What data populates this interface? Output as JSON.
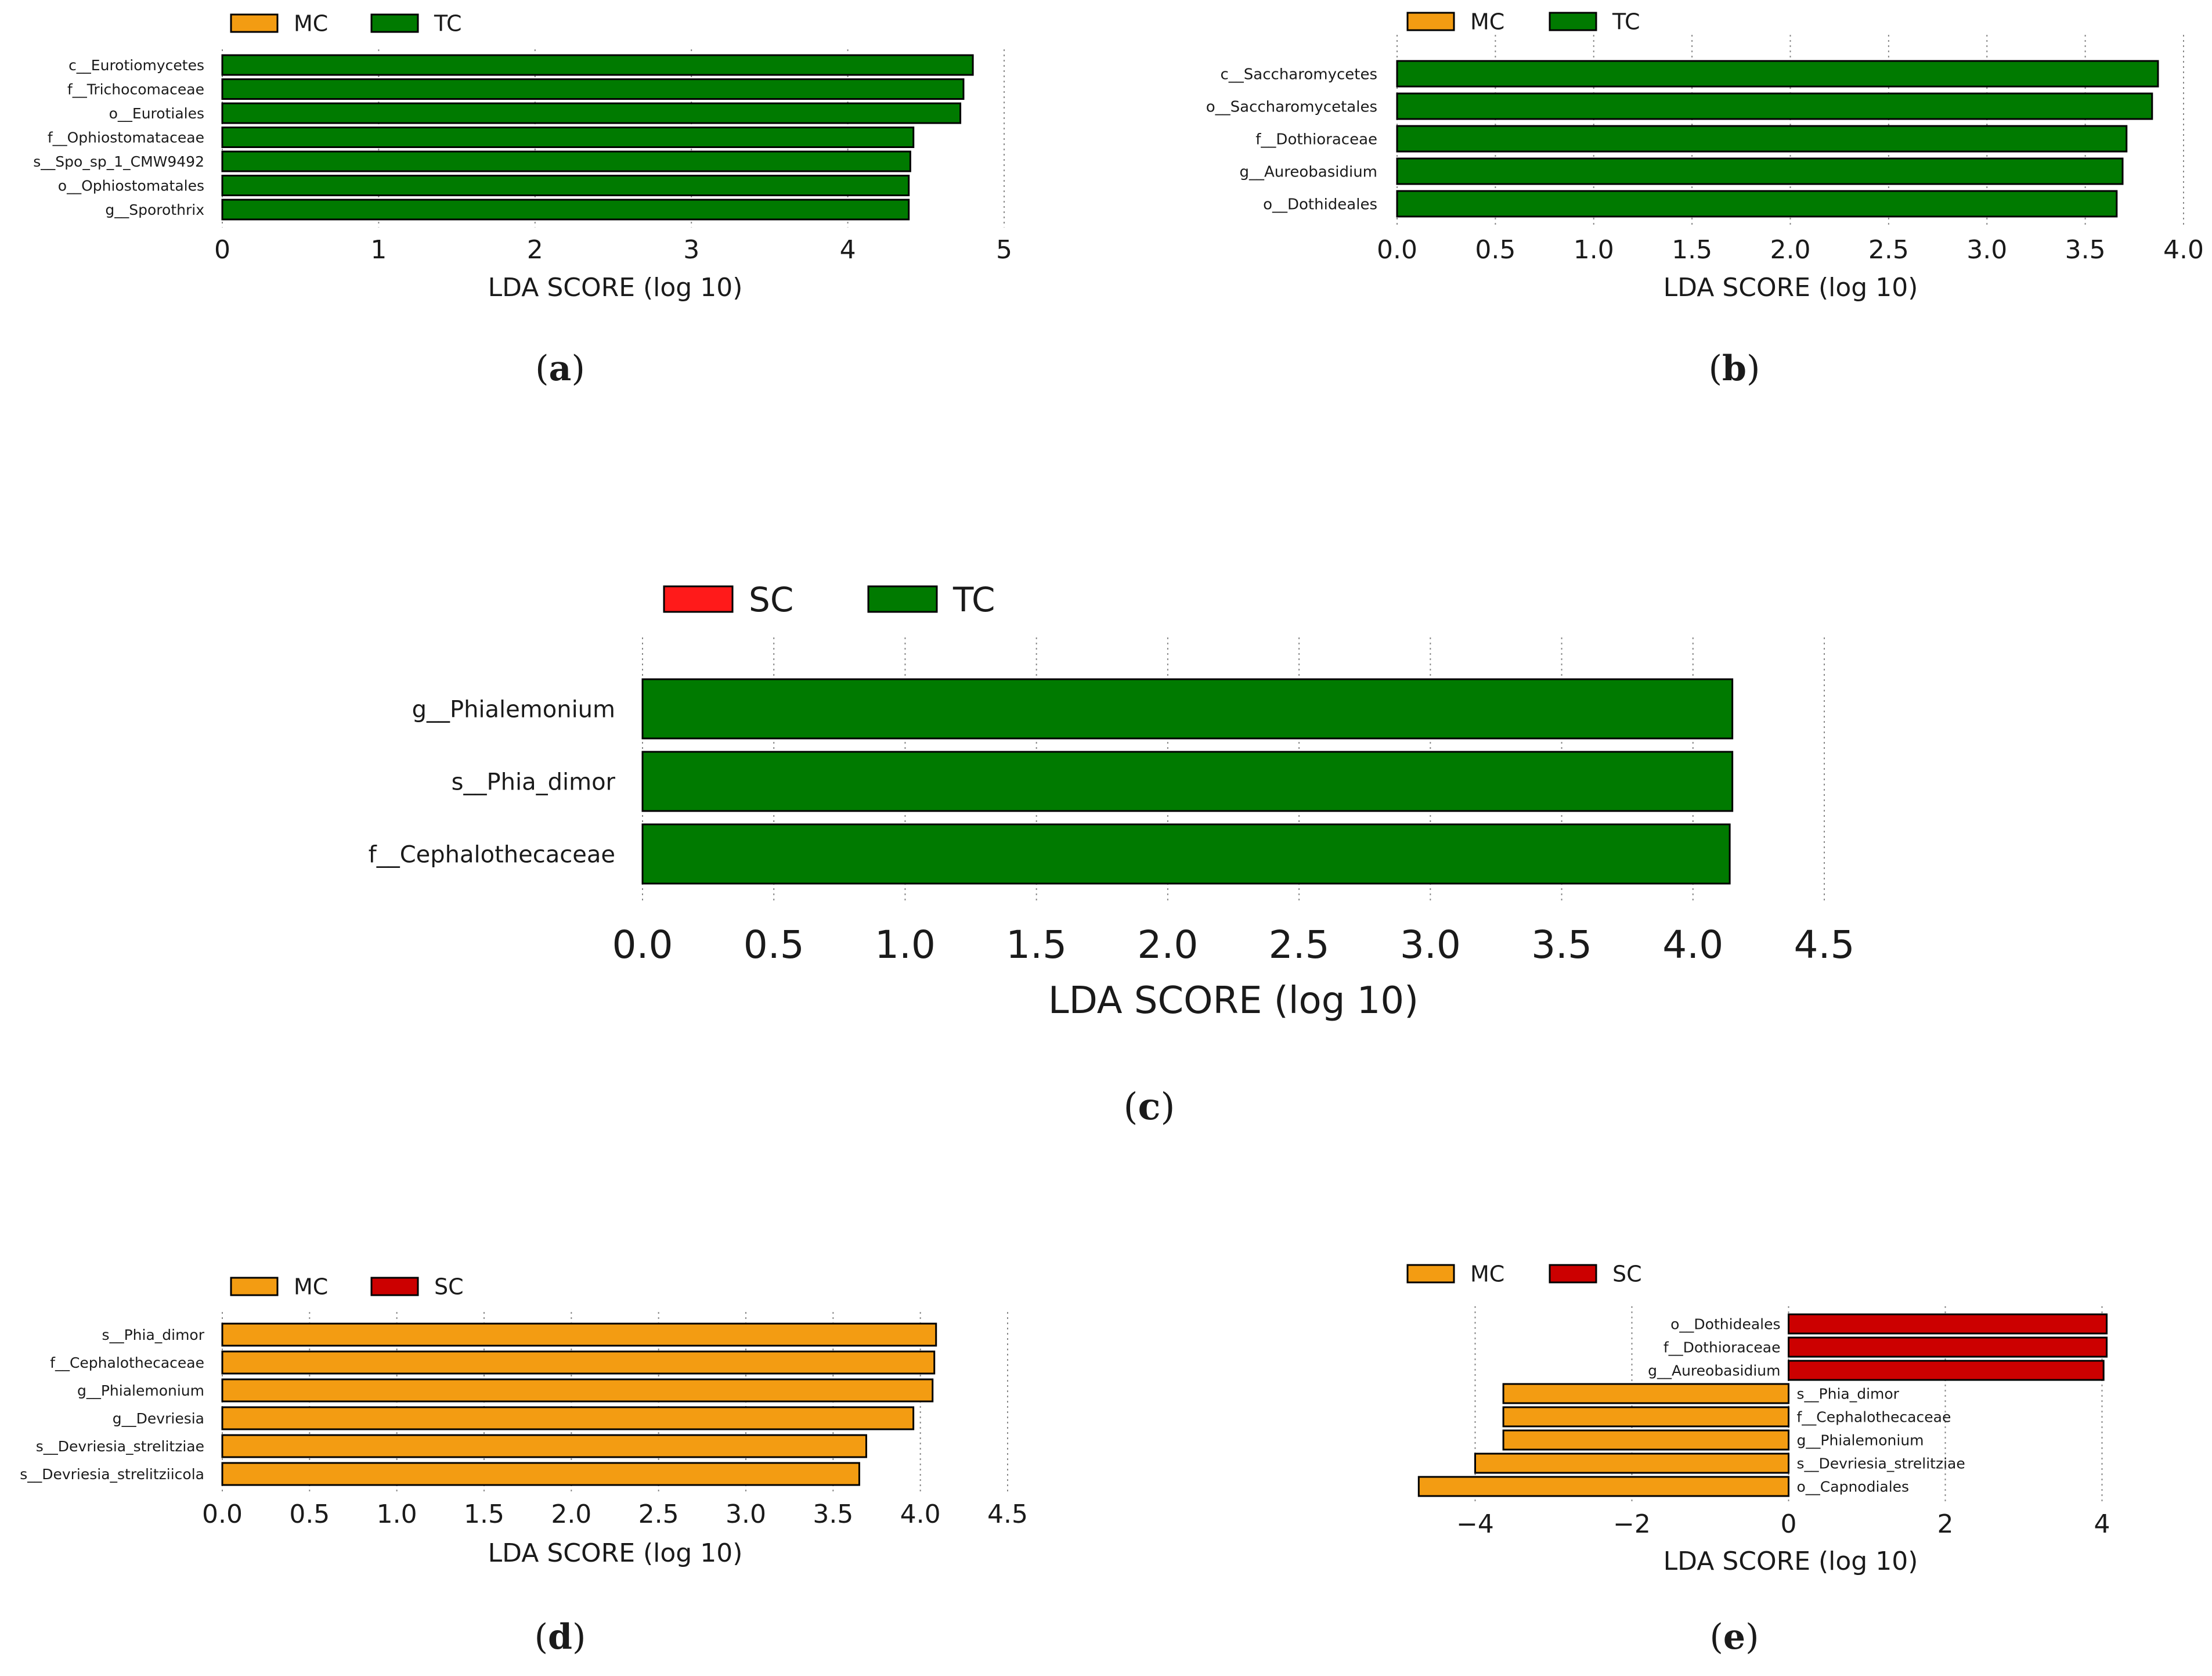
{
  "figure": {
    "captions": [
      "(a)",
      "(b)",
      "(c)",
      "(d)",
      "(e)"
    ]
  },
  "chart_data": [
    {
      "panel": "a",
      "caption_letter": "a",
      "type": "bar",
      "orientation": "horizontal",
      "xlabel": "LDA SCORE (log 10)",
      "xlim": [
        0,
        5
      ],
      "xticks": [
        0,
        1,
        2,
        3,
        4,
        5
      ],
      "tick_labels": [
        "0",
        "1",
        "2",
        "3",
        "4",
        "5"
      ],
      "legend": [
        {
          "name": "MC",
          "color": "#f39c12"
        },
        {
          "name": "TC",
          "color": "#007a00"
        }
      ],
      "categories": [
        "c__Eurotiomycetes",
        "f__Trichocomaceae",
        "o__Eurotiales",
        "f__Ophiostomataceae",
        "s__Spo_sp_1_CMW9492",
        "o__Ophiostomatales",
        "g__Sporothrix"
      ],
      "values": [
        4.8,
        4.74,
        4.72,
        4.42,
        4.4,
        4.39,
        4.39
      ],
      "groups": [
        "TC",
        "TC",
        "TC",
        "TC",
        "TC",
        "TC",
        "TC"
      ]
    },
    {
      "panel": "b",
      "caption_letter": "b",
      "type": "bar",
      "orientation": "horizontal",
      "xlabel": "LDA SCORE (log 10)",
      "xlim": [
        0,
        4
      ],
      "xticks": [
        0,
        0.5,
        1,
        1.5,
        2,
        2.5,
        3,
        3.5,
        4
      ],
      "tick_labels": [
        "0.0",
        "0.5",
        "1.0",
        "1.5",
        "2.0",
        "2.5",
        "3.0",
        "3.5",
        "4.0"
      ],
      "legend": [
        {
          "name": "MC",
          "color": "#f39c12"
        },
        {
          "name": "TC",
          "color": "#007a00"
        }
      ],
      "categories": [
        "c__Saccharomycetes",
        "o__Saccharomycetales",
        "f__Dothioraceae",
        "g__Aureobasidium",
        "o__Dothideales"
      ],
      "values": [
        3.87,
        3.84,
        3.71,
        3.69,
        3.66
      ],
      "groups": [
        "TC",
        "TC",
        "TC",
        "TC",
        "TC"
      ]
    },
    {
      "panel": "c",
      "caption_letter": "c",
      "type": "bar",
      "orientation": "horizontal",
      "xlabel": "LDA SCORE (log 10)",
      "xlim": [
        0,
        4.5
      ],
      "xticks": [
        0,
        0.5,
        1,
        1.5,
        2,
        2.5,
        3,
        3.5,
        4,
        4.5
      ],
      "tick_labels": [
        "0.0",
        "0.5",
        "1.0",
        "1.5",
        "2.0",
        "2.5",
        "3.0",
        "3.5",
        "4.0",
        "4.5"
      ],
      "legend": [
        {
          "name": "SC",
          "color": "#ff1a1a"
        },
        {
          "name": "TC",
          "color": "#007a00"
        }
      ],
      "categories": [
        "g__Phialemonium",
        "s__Phia_dimor",
        "f__Cephalothecaceae"
      ],
      "values": [
        4.15,
        4.15,
        4.14
      ],
      "groups": [
        "TC",
        "TC",
        "TC"
      ]
    },
    {
      "panel": "d",
      "caption_letter": "d",
      "type": "bar",
      "orientation": "horizontal",
      "xlabel": "LDA SCORE (log 10)",
      "xlim": [
        0,
        4.5
      ],
      "xticks": [
        0,
        0.5,
        1,
        1.5,
        2,
        2.5,
        3,
        3.5,
        4,
        4.5
      ],
      "tick_labels": [
        "0.0",
        "0.5",
        "1.0",
        "1.5",
        "2.0",
        "2.5",
        "3.0",
        "3.5",
        "4.0",
        "4.5"
      ],
      "legend": [
        {
          "name": "MC",
          "color": "#f39c12"
        },
        {
          "name": "SC",
          "color": "#cc0000"
        }
      ],
      "categories": [
        "s__Phia_dimor",
        "f__Cephalothecaceae",
        "g__Phialemonium",
        "g__Devriesia",
        "s__Devriesia_strelitziae",
        "s__Devriesia_strelitziicola"
      ],
      "values": [
        4.09,
        4.08,
        4.07,
        3.96,
        3.69,
        3.65
      ],
      "groups": [
        "MC",
        "MC",
        "MC",
        "MC",
        "MC",
        "MC"
      ]
    },
    {
      "panel": "e",
      "caption_letter": "e",
      "type": "bar",
      "orientation": "horizontal",
      "diverging": true,
      "xlabel": "LDA SCORE (log 10)",
      "xlim": [
        -4.7,
        4.1
      ],
      "xticks": [
        -4,
        -2,
        0,
        2,
        4
      ],
      "tick_labels": [
        "−4",
        "−2",
        "0",
        "2",
        "4"
      ],
      "legend": [
        {
          "name": "MC",
          "color": "#f39c12"
        },
        {
          "name": "SC",
          "color": "#cc0000"
        }
      ],
      "categories": [
        "o__Dothideales",
        "f__Dothioraceae",
        "g__Aureobasidium",
        "s__Phia_dimor",
        "f__Cephalothecaceae",
        "g__Phialemonium",
        "s__Devriesia_strelitziae",
        "o__Capnodiales"
      ],
      "values": [
        4.06,
        4.06,
        4.02,
        -3.64,
        -3.64,
        -3.64,
        -4.0,
        -4.72
      ],
      "groups": [
        "SC",
        "SC",
        "SC",
        "MC",
        "MC",
        "MC",
        "MC",
        "MC"
      ]
    }
  ]
}
